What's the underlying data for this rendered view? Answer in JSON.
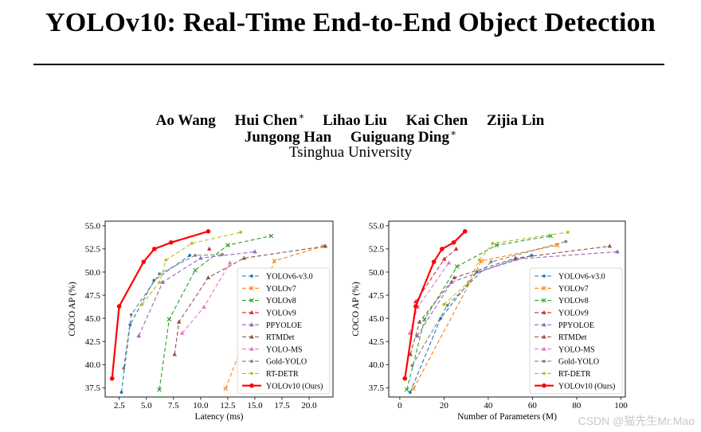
{
  "paper": {
    "title": "YOLOv10: Real-Time End-to-End Object Detection",
    "authors_line1": [
      {
        "name": "Ao Wang",
        "mark": ""
      },
      {
        "name": "Hui Chen",
        "mark": "∗"
      },
      {
        "name": "Lihao Liu",
        "mark": ""
      },
      {
        "name": "Kai Chen",
        "mark": ""
      },
      {
        "name": "Zijia Lin",
        "mark": ""
      }
    ],
    "authors_line2": [
      {
        "name": "Jungong Han",
        "mark": ""
      },
      {
        "name": "Guiguang Ding",
        "mark": "∗"
      }
    ],
    "affiliation": "Tsinghua University"
  },
  "watermark": "CSDN @猫先生Mr.Mao",
  "chart_data": [
    {
      "type": "line",
      "xlabel": "Latency (ms)",
      "ylabel": "COCO AP (%)",
      "xlim": [
        1.2,
        22.2
      ],
      "ylim": [
        36.5,
        55.5
      ],
      "xticks": [
        2.5,
        5.0,
        7.5,
        10.0,
        12.5,
        15.0,
        17.5,
        20.0
      ],
      "xtick_labels": [
        "2.5",
        "5.0",
        "7.5",
        "10.0",
        "12.5",
        "15.0",
        "17.5",
        "20.0"
      ],
      "yticks": [
        37.5,
        40.0,
        42.5,
        45.0,
        47.5,
        50.0,
        52.5,
        55.0
      ],
      "ytick_labels": [
        "37.5",
        "40.0",
        "42.5",
        "45.0",
        "47.5",
        "50.0",
        "52.5",
        "55.0"
      ],
      "legend_position": "lower-right",
      "series": [
        {
          "name": "YOLOv6-v3.0",
          "color": "#1f77b4",
          "marker": "dot",
          "dash": "5,3",
          "x": [
            2.7,
            3.5,
            5.7,
            9.0
          ],
          "y": [
            37.0,
            44.3,
            49.1,
            51.8
          ]
        },
        {
          "name": "YOLOv7",
          "color": "#ff7f0e",
          "marker": "x",
          "dash": "5,3",
          "x": [
            12.3,
            16.8,
            21.3
          ],
          "y": [
            37.4,
            51.2,
            52.8
          ]
        },
        {
          "name": "YOLOv8",
          "color": "#2ca02c",
          "marker": "x",
          "dash": "5,3",
          "x": [
            6.2,
            7.1,
            9.5,
            12.5,
            16.5
          ],
          "y": [
            37.3,
            44.9,
            50.2,
            52.9,
            53.9
          ]
        },
        {
          "name": "YOLOv9",
          "color": "#d62728",
          "marker": "tri",
          "dash": "5,3",
          "x": [
            10.8
          ],
          "y": [
            52.5
          ]
        },
        {
          "name": "PPYOLOE",
          "color": "#9467bd",
          "marker": "tri",
          "dash": "5,3",
          "x": [
            4.3,
            6.5,
            10.0,
            15.0
          ],
          "y": [
            43.1,
            48.9,
            51.5,
            52.2
          ]
        },
        {
          "name": "RTMDet",
          "color": "#8c564b",
          "marker": "tri",
          "dash": "5,3",
          "x": [
            7.6,
            8.0,
            10.7,
            14.0,
            21.5
          ],
          "y": [
            41.1,
            44.6,
            49.4,
            51.5,
            52.8
          ]
        },
        {
          "name": "YOLO-MS",
          "color": "#e377c2",
          "marker": "tri",
          "dash": "5,3",
          "x": [
            8.3,
            10.3,
            12.7
          ],
          "y": [
            43.4,
            46.2,
            51.0
          ]
        },
        {
          "name": "Gold-YOLO",
          "color": "#7f7f7f",
          "marker": "dot",
          "dash": "5,3",
          "x": [
            2.9,
            3.6,
            6.2,
            9.5,
            12.0
          ],
          "y": [
            39.6,
            45.4,
            49.8,
            51.8,
            51.9
          ]
        },
        {
          "name": "RT-DETR",
          "color": "#bcbd22",
          "marker": "dot",
          "dash": "5,3",
          "x": [
            4.6,
            6.2,
            6.8,
            9.2,
            13.7
          ],
          "y": [
            46.5,
            48.9,
            51.3,
            53.1,
            54.3
          ]
        },
        {
          "name": "YOLOv10 (Ours)",
          "color": "#ff0000",
          "marker": "dot",
          "dash": "",
          "x": [
            1.84,
            2.49,
            4.74,
            5.74,
            7.28,
            10.7
          ],
          "y": [
            38.5,
            46.3,
            51.1,
            52.5,
            53.2,
            54.4
          ]
        }
      ]
    },
    {
      "type": "line",
      "xlabel": "Number of Parameters (M)",
      "ylabel": "COCO AP (%)",
      "xlim": [
        -5,
        102
      ],
      "ylim": [
        36.5,
        55.5
      ],
      "xticks": [
        0,
        20,
        40,
        60,
        80,
        100
      ],
      "xtick_labels": [
        "0",
        "20",
        "40",
        "60",
        "80",
        "100"
      ],
      "yticks": [
        37.5,
        40.0,
        42.5,
        45.0,
        47.5,
        50.0,
        52.5,
        55.0
      ],
      "ytick_labels": [
        "37.5",
        "40.0",
        "42.5",
        "45.0",
        "47.5",
        "50.0",
        "52.5",
        "55.0"
      ],
      "legend_position": "lower-right",
      "series": [
        {
          "name": "YOLOv6-v3.0",
          "color": "#1f77b4",
          "marker": "dot",
          "dash": "5,3",
          "x": [
            4.7,
            18.5,
            34.9,
            59.6
          ],
          "y": [
            37.0,
            45.0,
            50.0,
            51.8
          ]
        },
        {
          "name": "YOLOv7",
          "color": "#ff7f0e",
          "marker": "x",
          "dash": "5,3",
          "x": [
            6.2,
            36.9,
            71.3
          ],
          "y": [
            37.4,
            51.2,
            52.9
          ]
        },
        {
          "name": "YOLOv8",
          "color": "#2ca02c",
          "marker": "x",
          "dash": "5,3",
          "x": [
            3.2,
            11.2,
            25.9,
            43.7,
            68.2
          ],
          "y": [
            37.3,
            44.9,
            50.6,
            52.9,
            53.9
          ]
        },
        {
          "name": "YOLOv9",
          "color": "#d62728",
          "marker": "tri",
          "dash": "5,3",
          "x": [
            7.2,
            20.1,
            25.5
          ],
          "y": [
            46.8,
            51.4,
            52.5
          ]
        },
        {
          "name": "PPYOLOE",
          "color": "#9467bd",
          "marker": "tri",
          "dash": "5,3",
          "x": [
            7.9,
            23.4,
            52.2,
            98.4
          ],
          "y": [
            43.1,
            48.9,
            51.4,
            52.2
          ]
        },
        {
          "name": "RTMDet",
          "color": "#8c564b",
          "marker": "tri",
          "dash": "5,3",
          "x": [
            4.8,
            8.9,
            24.7,
            52.3,
            94.9
          ],
          "y": [
            41.1,
            44.6,
            49.4,
            51.5,
            52.8
          ]
        },
        {
          "name": "YOLO-MS",
          "color": "#e377c2",
          "marker": "tri",
          "dash": "5,3",
          "x": [
            4.5,
            8.1,
            22.2
          ],
          "y": [
            43.4,
            46.2,
            51.0
          ]
        },
        {
          "name": "Gold-YOLO",
          "color": "#7f7f7f",
          "marker": "dot",
          "dash": "5,3",
          "x": [
            5.6,
            21.5,
            41.3,
            75.1
          ],
          "y": [
            39.9,
            46.4,
            51.1,
            53.3
          ]
        },
        {
          "name": "RT-DETR",
          "color": "#bcbd22",
          "marker": "dot",
          "dash": "5,3",
          "x": [
            20.0,
            31.0,
            36.0,
            42.0,
            76.0
          ],
          "y": [
            46.5,
            48.9,
            51.3,
            53.1,
            54.3
          ]
        },
        {
          "name": "YOLOv10 (Ours)",
          "color": "#ff0000",
          "marker": "dot",
          "dash": "",
          "x": [
            2.3,
            7.2,
            15.4,
            19.1,
            24.4,
            29.5
          ],
          "y": [
            38.5,
            46.3,
            51.1,
            52.5,
            53.2,
            54.4
          ]
        }
      ]
    }
  ]
}
